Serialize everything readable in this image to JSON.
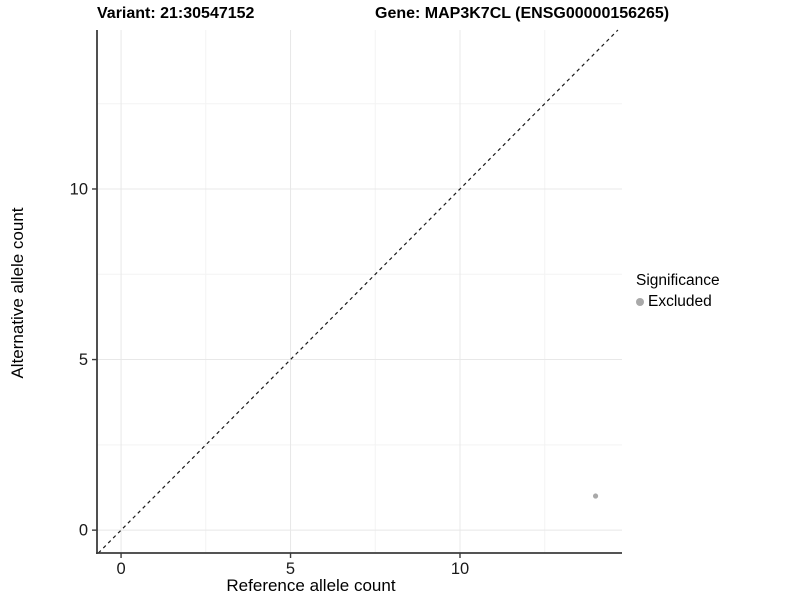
{
  "header": {
    "title_left": "Variant: 21:30547152",
    "title_right": "Gene: MAP3K7CL (ENSG00000156265)"
  },
  "chart_data": {
    "type": "scatter",
    "title": "Variant: 21:30547152  |  Gene: MAP3K7CL (ENSG00000156265)",
    "xlabel": "Reference allele count",
    "ylabel": "Alternative allele count",
    "xlim": [
      -0.71,
      14.78
    ],
    "ylim": [
      -0.67,
      14.66
    ],
    "x_major_ticks": [
      0,
      5,
      10
    ],
    "y_major_ticks": [
      0,
      5,
      10
    ],
    "x_minor_ticks": [
      2.5,
      7.5,
      12.5
    ],
    "y_minor_ticks": [
      2.5,
      7.5,
      12.5
    ],
    "grid": "on",
    "identity_line": {
      "style": "dashed",
      "from": [
        -0.67,
        -0.67
      ],
      "to": [
        14.66,
        14.66
      ],
      "color": "#1a1a1a"
    },
    "series": [
      {
        "name": "Excluded",
        "points": [
          {
            "x": 14,
            "y": 1
          }
        ],
        "color": "#a9a9a9"
      }
    ],
    "legend": {
      "title": "Significance",
      "position": "right",
      "items": [
        {
          "label": "Excluded",
          "color": "#a9a9a9"
        }
      ]
    },
    "colors": {
      "background": "#ffffff",
      "grid_major": "#e8e8e8",
      "grid_minor": "#f3f3f3",
      "axis_line": "#3c3c3c",
      "tick_label": "#1a1a1a",
      "point": "#a9a9a9"
    }
  }
}
